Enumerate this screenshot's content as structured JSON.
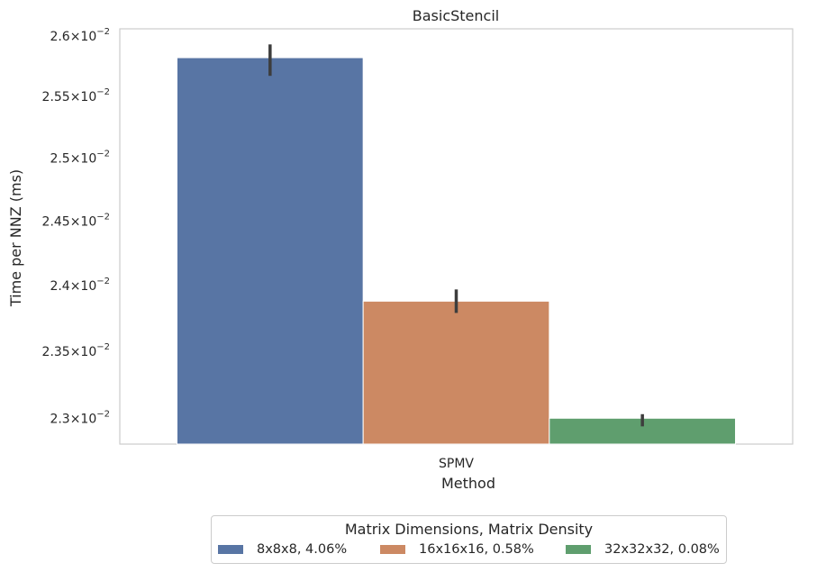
{
  "chart_data": {
    "type": "bar",
    "title": "BasicStencil",
    "xlabel": "Method",
    "ylabel": "Time per NNZ (ms)",
    "categories": [
      "SPMV"
    ],
    "y_scale": "log",
    "ylim": [
      0.02281,
      0.02606
    ],
    "y_ticks": [
      0.023,
      0.0235,
      0.024,
      0.0245,
      0.025,
      0.0255,
      0.026
    ],
    "y_tick_mantissas": [
      "2.3",
      "2.35",
      "2.4",
      "2.45",
      "2.5",
      "2.55",
      "2.6"
    ],
    "y_tick_base": "10",
    "y_tick_exponent": "−2",
    "grid": false,
    "legend_placement": "below",
    "legend_title": "Matrix Dimensions, Matrix Density",
    "series": [
      {
        "name": "8x8x8, 4.06%",
        "color": "#5875a4",
        "values": [
          0.02582
        ],
        "error": [
          [
            0.02567,
            0.02593
          ]
        ]
      },
      {
        "name": "16x16x16, 0.58%",
        "color": "#cc8963",
        "values": [
          0.02388
        ],
        "error": [
          [
            0.02379,
            0.02397
          ]
        ]
      },
      {
        "name": "32x32x32, 0.08%",
        "color": "#5f9e6e",
        "values": [
          0.023
        ],
        "error": [
          [
            0.02294,
            0.02303
          ]
        ]
      }
    ]
  }
}
